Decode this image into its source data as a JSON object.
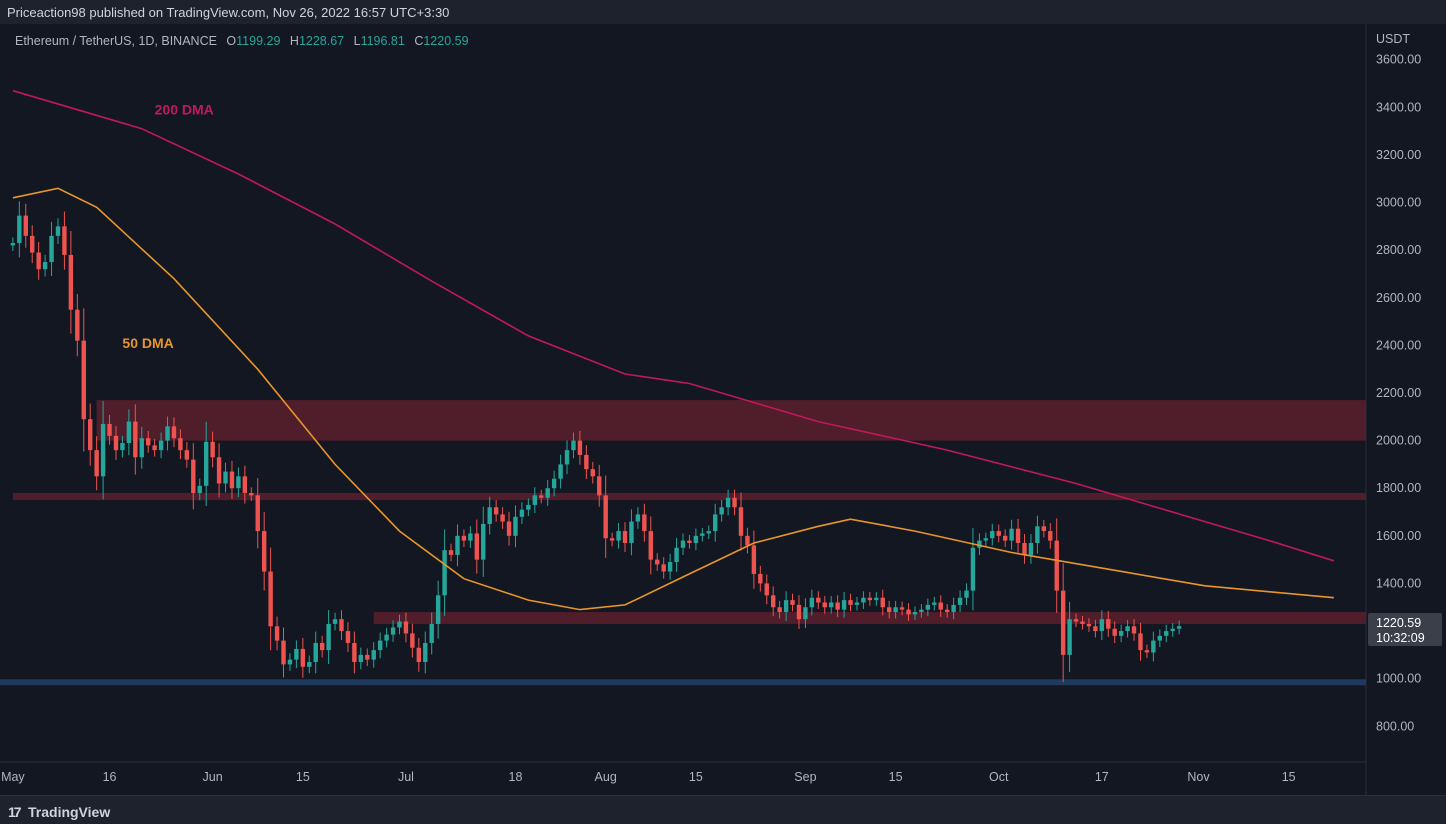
{
  "header": {
    "publisher_text": "Priceaction98 published on TradingView.com, Nov 26, 2022 16:57 UTC+3:30"
  },
  "legend": {
    "symbol": "Ethereum / TetherUS, 1D, BINANCE",
    "open_label": "O",
    "open": "1199.29",
    "high_label": "H",
    "high": "1228.67",
    "low_label": "L",
    "low": "1196.81",
    "close_label": "C",
    "close": "1220.59"
  },
  "price_axis": {
    "unit": "USDT"
  },
  "last_price": {
    "value": "1220.59",
    "countdown": "10:32:09"
  },
  "footer": {
    "brand": "TradingView",
    "logo_glyph": "17"
  },
  "colors": {
    "background": "#131722",
    "up": "#26a69a",
    "down": "#ef5350",
    "dma200": "#c2185b",
    "dma50": "#e8962b",
    "zone_red": "#5c1f2c",
    "line_blue": "#1e3a5f"
  },
  "chart_data": {
    "type": "candlestick",
    "title": "Ethereum / TetherUS, 1D, BINANCE",
    "ylim": [
      650,
      3750
    ],
    "y_ticks": [
      800,
      1000,
      1200,
      1400,
      1600,
      1800,
      2000,
      2200,
      2400,
      2600,
      2800,
      3000,
      3200,
      3400,
      3600
    ],
    "x_ticks": [
      {
        "label": "May",
        "day": 0
      },
      {
        "label": "16",
        "day": 15
      },
      {
        "label": "Jun",
        "day": 31
      },
      {
        "label": "15",
        "day": 45
      },
      {
        "label": "Jul",
        "day": 61
      },
      {
        "label": "18",
        "day": 78
      },
      {
        "label": "Aug",
        "day": 92
      },
      {
        "label": "15",
        "day": 106
      },
      {
        "label": "Sep",
        "day": 123
      },
      {
        "label": "15",
        "day": 137
      },
      {
        "label": "Oct",
        "day": 153
      },
      {
        "label": "17",
        "day": 169
      },
      {
        "label": "Nov",
        "day": 184
      },
      {
        "label": "15",
        "day": 198
      }
    ],
    "x_range_days": [
      -2,
      210
    ],
    "candles_close": [
      2830,
      2945,
      2860,
      2790,
      2720,
      2750,
      2860,
      2900,
      2780,
      2550,
      2420,
      2090,
      1960,
      1850,
      2070,
      2020,
      1960,
      1990,
      2080,
      1930,
      2010,
      1980,
      1960,
      2000,
      2060,
      2010,
      1960,
      1920,
      1780,
      1810,
      1995,
      1930,
      1820,
      1870,
      1800,
      1850,
      1780,
      1770,
      1620,
      1450,
      1220,
      1160,
      1060,
      1080,
      1125,
      1050,
      1070,
      1150,
      1120,
      1230,
      1250,
      1200,
      1150,
      1070,
      1100,
      1080,
      1120,
      1160,
      1185,
      1215,
      1240,
      1190,
      1130,
      1070,
      1150,
      1230,
      1350,
      1540,
      1520,
      1600,
      1580,
      1610,
      1500,
      1650,
      1720,
      1690,
      1660,
      1600,
      1680,
      1710,
      1730,
      1770,
      1760,
      1800,
      1840,
      1900,
      1960,
      2000,
      1940,
      1880,
      1850,
      1770,
      1590,
      1580,
      1620,
      1570,
      1660,
      1690,
      1620,
      1500,
      1480,
      1450,
      1490,
      1550,
      1580,
      1570,
      1600,
      1610,
      1620,
      1690,
      1720,
      1760,
      1720,
      1600,
      1560,
      1440,
      1400,
      1350,
      1300,
      1280,
      1330,
      1310,
      1250,
      1300,
      1340,
      1320,
      1300,
      1320,
      1290,
      1330,
      1310,
      1320,
      1340,
      1330,
      1340,
      1300,
      1280,
      1300,
      1290,
      1270,
      1280,
      1290,
      1310,
      1320,
      1290,
      1280,
      1310,
      1340,
      1370,
      1550,
      1580,
      1590,
      1620,
      1600,
      1580,
      1630,
      1570,
      1520,
      1570,
      1640,
      1620,
      1580,
      1370,
      1100,
      1250,
      1240,
      1230,
      1220,
      1200,
      1250,
      1210,
      1180,
      1200,
      1220,
      1190,
      1120,
      1110,
      1160,
      1180,
      1200,
      1210,
      1220.59
    ],
    "candles_open_first": 2820,
    "dma_200": [
      {
        "day": 0,
        "value": 3470
      },
      {
        "day": 20,
        "value": 3310
      },
      {
        "day": 35,
        "value": 3120
      },
      {
        "day": 50,
        "value": 2910
      },
      {
        "day": 65,
        "value": 2670
      },
      {
        "day": 80,
        "value": 2440
      },
      {
        "day": 95,
        "value": 2280
      },
      {
        "day": 105,
        "value": 2240
      },
      {
        "day": 115,
        "value": 2160
      },
      {
        "day": 125,
        "value": 2080
      },
      {
        "day": 145,
        "value": 1960
      },
      {
        "day": 165,
        "value": 1820
      },
      {
        "day": 185,
        "value": 1660
      },
      {
        "day": 195,
        "value": 1580
      },
      {
        "day": 205,
        "value": 1495
      }
    ],
    "dma_50": [
      {
        "day": 0,
        "value": 3020
      },
      {
        "day": 7,
        "value": 3060
      },
      {
        "day": 13,
        "value": 2980
      },
      {
        "day": 25,
        "value": 2680
      },
      {
        "day": 38,
        "value": 2300
      },
      {
        "day": 50,
        "value": 1900
      },
      {
        "day": 60,
        "value": 1620
      },
      {
        "day": 70,
        "value": 1420
      },
      {
        "day": 80,
        "value": 1330
      },
      {
        "day": 88,
        "value": 1290
      },
      {
        "day": 95,
        "value": 1310
      },
      {
        "day": 105,
        "value": 1440
      },
      {
        "day": 115,
        "value": 1570
      },
      {
        "day": 125,
        "value": 1640
      },
      {
        "day": 130,
        "value": 1670
      },
      {
        "day": 140,
        "value": 1620
      },
      {
        "day": 155,
        "value": 1530
      },
      {
        "day": 170,
        "value": 1460
      },
      {
        "day": 185,
        "value": 1390
      },
      {
        "day": 205,
        "value": 1340
      }
    ],
    "zones": [
      {
        "name": "resistance-2000-2170",
        "from": 2000,
        "to": 2170,
        "start_day": 13
      },
      {
        "name": "resistance-1750-1780",
        "from": 1750,
        "to": 1780,
        "start_day": 0
      },
      {
        "name": "support-1230-1280",
        "from": 1230,
        "to": 1280,
        "start_day": 56
      }
    ],
    "support_line": 985,
    "annotations": [
      {
        "label": "200 DMA",
        "day": 22,
        "value": 3370
      },
      {
        "label": "50 DMA",
        "day": 17,
        "value": 2390
      }
    ]
  }
}
